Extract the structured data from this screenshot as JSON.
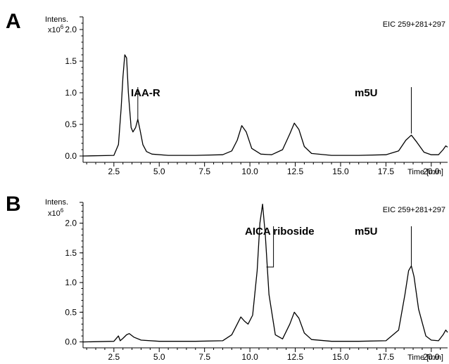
{
  "chart_data": [
    {
      "type": "line",
      "panel": "A",
      "ylabel": "Intens.",
      "yunit": "x10",
      "yunit_exp": "6",
      "xlabel": "Time [min]",
      "trace_label": "EIC 259+281+297",
      "xlim": [
        0.8,
        20.9
      ],
      "ylim": [
        -0.1,
        2.2
      ],
      "xticks": [
        "2.5",
        "5.0",
        "7.5",
        "10.0",
        "12.5",
        "15.0",
        "17.5",
        "20.0"
      ],
      "yticks": [
        "0.0",
        "0.5",
        "1.0",
        "1.5",
        "2.0"
      ],
      "series": [
        {
          "x": [
            0.8,
            2.5,
            2.75,
            2.9,
            3.0,
            3.1,
            3.2,
            3.3,
            3.45,
            3.55,
            3.7,
            3.82,
            3.95,
            4.1,
            4.3,
            4.6,
            5.5,
            7.0,
            8.5,
            9.0,
            9.3,
            9.55,
            9.8,
            10.1,
            10.6,
            11.2,
            11.8,
            12.2,
            12.45,
            12.7,
            13.0,
            13.4,
            14.5,
            16.0,
            17.5,
            18.2,
            18.6,
            18.9,
            19.2,
            19.6,
            20.0,
            20.4,
            20.65,
            20.8,
            20.9
          ],
          "y": [
            0.0,
            0.01,
            0.18,
            0.75,
            1.25,
            1.6,
            1.55,
            1.0,
            0.45,
            0.38,
            0.45,
            0.58,
            0.4,
            0.18,
            0.07,
            0.03,
            0.01,
            0.01,
            0.02,
            0.08,
            0.25,
            0.48,
            0.38,
            0.12,
            0.03,
            0.02,
            0.1,
            0.35,
            0.52,
            0.42,
            0.15,
            0.04,
            0.01,
            0.01,
            0.02,
            0.08,
            0.25,
            0.33,
            0.22,
            0.06,
            0.02,
            0.02,
            0.1,
            0.16,
            0.14
          ]
        }
      ],
      "annotations": [
        {
          "text": "IAA-R",
          "x": 3.82
        },
        {
          "text": "m5U",
          "x": 18.9
        }
      ]
    },
    {
      "type": "line",
      "panel": "B",
      "ylabel": "Intens.",
      "yunit": "x10",
      "yunit_exp": "6",
      "xlabel": "Time [min]",
      "trace_label": "EIC 259+281+297",
      "xlim": [
        0.8,
        20.9
      ],
      "ylim": [
        -0.1,
        2.35
      ],
      "xticks": [
        "2.5",
        "5.0",
        "7.5",
        "10.0",
        "12.5",
        "15.0",
        "17.5",
        "20.0"
      ],
      "yticks": [
        "0.0",
        "0.5",
        "1.0",
        "1.5",
        "2.0"
      ],
      "series": [
        {
          "x": [
            0.8,
            2.5,
            2.75,
            2.85,
            3.0,
            3.2,
            3.35,
            3.6,
            4.0,
            5.0,
            7.0,
            8.5,
            9.0,
            9.3,
            9.5,
            9.7,
            9.9,
            10.15,
            10.4,
            10.55,
            10.7,
            10.85,
            11.05,
            11.4,
            11.8,
            12.2,
            12.45,
            12.7,
            13.0,
            13.4,
            14.5,
            16.0,
            17.5,
            18.2,
            18.55,
            18.75,
            18.9,
            19.05,
            19.3,
            19.7,
            20.0,
            20.4,
            20.65,
            20.8,
            20.9
          ],
          "y": [
            0.0,
            0.01,
            0.1,
            0.02,
            0.06,
            0.12,
            0.14,
            0.08,
            0.03,
            0.01,
            0.01,
            0.02,
            0.12,
            0.3,
            0.42,
            0.35,
            0.3,
            0.45,
            1.2,
            2.0,
            2.32,
            1.8,
            0.8,
            0.12,
            0.05,
            0.3,
            0.5,
            0.4,
            0.15,
            0.04,
            0.01,
            0.01,
            0.02,
            0.2,
            0.8,
            1.2,
            1.28,
            1.1,
            0.55,
            0.1,
            0.03,
            0.02,
            0.12,
            0.2,
            0.16
          ]
        }
      ],
      "annotations": [
        {
          "text": "AICA riboside",
          "x": 11.3
        },
        {
          "text": "m5U",
          "x": 18.9
        }
      ]
    }
  ]
}
